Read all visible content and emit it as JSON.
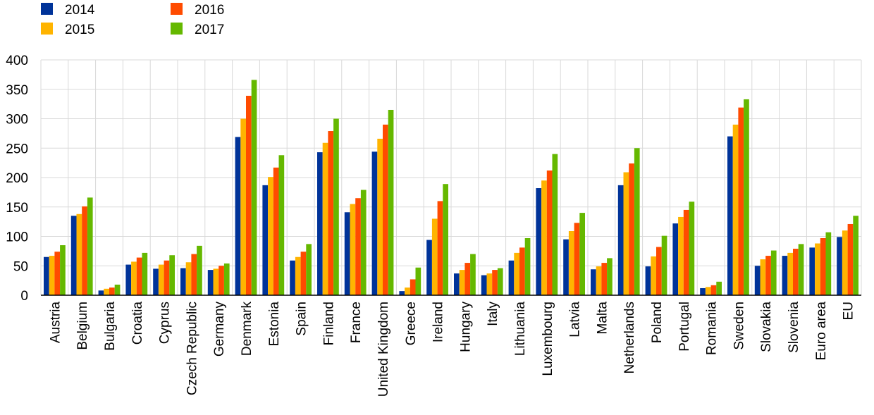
{
  "chart_data": {
    "type": "bar",
    "title": "",
    "xlabel": "",
    "ylabel": "",
    "ylim": [
      0,
      400
    ],
    "yticks": [
      0,
      50,
      100,
      150,
      200,
      250,
      300,
      350,
      400
    ],
    "grid": true,
    "legend_position": "top-left",
    "categories": [
      "Austria",
      "Belgium",
      "Bulgaria",
      "Croatia",
      "Cyprus",
      "Czech Republic",
      "Germany",
      "Denmark",
      "Estonia",
      "Spain",
      "Finland",
      "France",
      "United Kingdom",
      "Greece",
      "Ireland",
      "Hungary",
      "Italy",
      "Lithuania",
      "Luxembourg",
      "Latvia",
      "Malta",
      "Netherlands",
      "Poland",
      "Portugal",
      "Romania",
      "Sweden",
      "Slovakia",
      "Slovenia",
      "Euro area",
      "EU"
    ],
    "series": [
      {
        "name": "2014",
        "color": "#003399",
        "values": [
          65,
          135,
          8,
          52,
          45,
          46,
          43,
          269,
          187,
          59,
          243,
          141,
          244,
          7,
          94,
          37,
          34,
          59,
          182,
          95,
          44,
          187,
          49,
          122,
          12,
          270,
          50,
          67,
          81,
          99
        ]
      },
      {
        "name": "2015",
        "color": "#FFB400",
        "values": [
          67,
          138,
          11,
          57,
          52,
          56,
          45,
          300,
          201,
          65,
          259,
          155,
          266,
          13,
          130,
          43,
          37,
          72,
          195,
          109,
          49,
          209,
          66,
          133,
          14,
          290,
          61,
          72,
          88,
          110
        ]
      },
      {
        "name": "2016",
        "color": "#FF4B00",
        "values": [
          74,
          151,
          13,
          64,
          59,
          70,
          50,
          339,
          217,
          74,
          279,
          165,
          290,
          27,
          160,
          55,
          43,
          81,
          212,
          123,
          55,
          224,
          82,
          145,
          17,
          319,
          67,
          79,
          97,
          121
        ]
      },
      {
        "name": "2017",
        "color": "#65B800",
        "values": [
          85,
          166,
          18,
          72,
          68,
          84,
          54,
          366,
          238,
          87,
          300,
          179,
          315,
          47,
          189,
          70,
          46,
          97,
          240,
          140,
          63,
          250,
          101,
          159,
          23,
          333,
          76,
          87,
          107,
          135
        ]
      }
    ]
  }
}
